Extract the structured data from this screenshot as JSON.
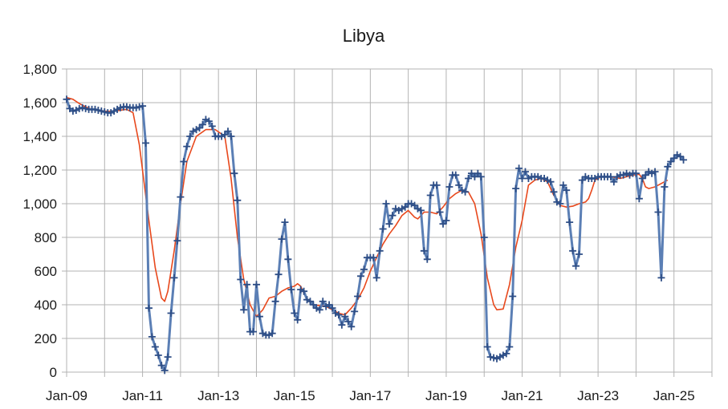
{
  "chart_data": {
    "type": "line",
    "title": "Libya",
    "ylim": [
      0,
      1800
    ],
    "xlim": [
      "2009-01",
      "2026-01"
    ],
    "grid": true,
    "y_ticks": [
      {
        "value": 0,
        "label": "0"
      },
      {
        "value": 200,
        "label": "200"
      },
      {
        "value": 400,
        "label": "400"
      },
      {
        "value": 600,
        "label": "600"
      },
      {
        "value": 800,
        "label": "800"
      },
      {
        "value": 1000,
        "label": "1,000"
      },
      {
        "value": 1200,
        "label": "1,200"
      },
      {
        "value": 1400,
        "label": "1,400"
      },
      {
        "value": 1600,
        "label": "1,600"
      },
      {
        "value": 1800,
        "label": "1,800"
      }
    ],
    "x_ticks": [
      {
        "date": "2009-01",
        "label": "Jan-09"
      },
      {
        "date": "2011-01",
        "label": "Jan-11"
      },
      {
        "date": "2013-01",
        "label": "Jan-13"
      },
      {
        "date": "2015-01",
        "label": "Jan-15"
      },
      {
        "date": "2017-01",
        "label": "Jan-17"
      },
      {
        "date": "2019-01",
        "label": "Jan-19"
      },
      {
        "date": "2021-01",
        "label": "Jan-21"
      },
      {
        "date": "2023-01",
        "label": "Jan-23"
      },
      {
        "date": "2025-01",
        "label": "Jan-25"
      }
    ],
    "series": [
      {
        "color": "#5b7fb5",
        "marker": "plus",
        "marker_color": "#2e4e86",
        "monthly_by_year": {
          "2009": [
            1620,
            1565,
            1550,
            1555,
            1565,
            1570,
            1565,
            1560,
            1560,
            1560,
            1555,
            1550
          ],
          "2010": [
            1545,
            1540,
            1540,
            1550,
            1560,
            1570,
            1575,
            1575,
            1570,
            1570,
            1570,
            1575
          ],
          "2011": [
            1580,
            1360,
            380,
            210,
            150,
            100,
            40,
            10,
            90,
            350,
            560,
            780
          ],
          "2012": [
            1040,
            1250,
            1340,
            1400,
            1430,
            1440,
            1450,
            1470,
            1500,
            1490,
            1460,
            1400
          ],
          "2013": [
            1400,
            1400,
            1410,
            1430,
            1400,
            1180,
            1020,
            550,
            370,
            520,
            240,
            240
          ],
          "2014": [
            520,
            330,
            230,
            220,
            220,
            230,
            420,
            580,
            790,
            890,
            670,
            490
          ],
          "2015": [
            350,
            310,
            490,
            480,
            430,
            420,
            400,
            380,
            370,
            420,
            390,
            400
          ],
          "2016": [
            380,
            350,
            340,
            280,
            330,
            300,
            270,
            360,
            450,
            570,
            610,
            680
          ],
          "2017": [
            680,
            680,
            560,
            720,
            850,
            1000,
            880,
            930,
            970,
            960,
            970,
            980
          ],
          "2018": [
            1000,
            1000,
            990,
            970,
            960,
            720,
            670,
            1050,
            1110,
            1110,
            950,
            880
          ],
          "2019": [
            900,
            1100,
            1170,
            1170,
            1110,
            1080,
            1070,
            1150,
            1180,
            1160,
            1180,
            1160
          ],
          "2020": [
            800,
            150,
            90,
            85,
            80,
            90,
            100,
            110,
            150,
            450,
            1090,
            1210
          ],
          "2021": [
            1150,
            1190,
            1150,
            1160,
            1160,
            1160,
            1150,
            1150,
            1140,
            1130,
            1070,
            1010
          ],
          "2022": [
            1000,
            1110,
            1080,
            890,
            720,
            630,
            700,
            1140,
            1160,
            1150,
            1150,
            1150
          ],
          "2023": [
            1160,
            1160,
            1160,
            1160,
            1160,
            1130,
            1160,
            1170,
            1170,
            1180,
            1170,
            1180
          ],
          "2024": [
            1180,
            1030,
            1150,
            1170,
            1190,
            1180,
            1190,
            950,
            560,
            1100,
            1220,
            1250
          ],
          "2025": [
            1270,
            1290,
            1280,
            1260
          ]
        }
      },
      {
        "color": "#e8481c",
        "points": [
          [
            "2009-01",
            1630
          ],
          [
            "2009-03",
            1620
          ],
          [
            "2009-05",
            1595
          ],
          [
            "2009-07",
            1575
          ],
          [
            "2009-09",
            1560
          ],
          [
            "2009-11",
            1555
          ],
          [
            "2010-01",
            1550
          ],
          [
            "2010-03",
            1548
          ],
          [
            "2010-05",
            1552
          ],
          [
            "2010-07",
            1558
          ],
          [
            "2010-08",
            1560
          ],
          [
            "2010-10",
            1540
          ],
          [
            "2010-12",
            1350
          ],
          [
            "2011-02",
            1050
          ],
          [
            "2011-03",
            900
          ],
          [
            "2011-05",
            620
          ],
          [
            "2011-07",
            440
          ],
          [
            "2011-08",
            420
          ],
          [
            "2011-09",
            480
          ],
          [
            "2011-11",
            720
          ],
          [
            "2012-01",
            1000
          ],
          [
            "2012-03",
            1250
          ],
          [
            "2012-06",
            1400
          ],
          [
            "2012-09",
            1440
          ],
          [
            "2012-12",
            1440
          ],
          [
            "2013-03",
            1400
          ],
          [
            "2013-05",
            1150
          ],
          [
            "2013-07",
            800
          ],
          [
            "2013-09",
            550
          ],
          [
            "2013-11",
            400
          ],
          [
            "2014-01",
            330
          ],
          [
            "2014-03",
            370
          ],
          [
            "2014-05",
            440
          ],
          [
            "2014-07",
            450
          ],
          [
            "2014-09",
            480
          ],
          [
            "2014-11",
            500
          ],
          [
            "2015-01",
            510
          ],
          [
            "2015-02",
            525
          ],
          [
            "2015-03",
            510
          ],
          [
            "2015-05",
            430
          ],
          [
            "2015-07",
            400
          ],
          [
            "2015-09",
            395
          ],
          [
            "2015-11",
            390
          ],
          [
            "2016-01",
            370
          ],
          [
            "2016-03",
            350
          ],
          [
            "2016-05",
            340
          ],
          [
            "2016-07",
            380
          ],
          [
            "2016-09",
            430
          ],
          [
            "2016-11",
            500
          ],
          [
            "2017-01",
            600
          ],
          [
            "2017-03",
            680
          ],
          [
            "2017-05",
            760
          ],
          [
            "2017-07",
            820
          ],
          [
            "2017-09",
            870
          ],
          [
            "2017-11",
            930
          ],
          [
            "2018-01",
            960
          ],
          [
            "2018-03",
            920
          ],
          [
            "2018-04",
            910
          ],
          [
            "2018-06",
            950
          ],
          [
            "2018-08",
            950
          ],
          [
            "2018-10",
            940
          ],
          [
            "2018-12",
            980
          ],
          [
            "2019-02",
            1030
          ],
          [
            "2019-04",
            1060
          ],
          [
            "2019-06",
            1080
          ],
          [
            "2019-08",
            1070
          ],
          [
            "2019-10",
            1000
          ],
          [
            "2019-12",
            820
          ],
          [
            "2020-02",
            560
          ],
          [
            "2020-04",
            400
          ],
          [
            "2020-05",
            370
          ],
          [
            "2020-07",
            375
          ],
          [
            "2020-09",
            520
          ],
          [
            "2020-11",
            740
          ],
          [
            "2021-01",
            900
          ],
          [
            "2021-03",
            1110
          ],
          [
            "2021-05",
            1140
          ],
          [
            "2021-07",
            1150
          ],
          [
            "2021-09",
            1130
          ],
          [
            "2021-11",
            1050
          ],
          [
            "2022-01",
            990
          ],
          [
            "2022-03",
            980
          ],
          [
            "2022-05",
            985
          ],
          [
            "2022-07",
            1000
          ],
          [
            "2022-09",
            1010
          ],
          [
            "2022-10",
            1030
          ],
          [
            "2022-11",
            1080
          ],
          [
            "2022-12",
            1140
          ],
          [
            "2023-02",
            1160
          ],
          [
            "2023-05",
            1160
          ],
          [
            "2023-08",
            1150
          ],
          [
            "2023-10",
            1160
          ],
          [
            "2023-12",
            1170
          ],
          [
            "2024-02",
            1175
          ],
          [
            "2024-03",
            1150
          ],
          [
            "2024-04",
            1100
          ],
          [
            "2024-05",
            1090
          ],
          [
            "2024-07",
            1100
          ],
          [
            "2024-09",
            1120
          ],
          [
            "2024-11",
            1140
          ]
        ]
      }
    ]
  }
}
